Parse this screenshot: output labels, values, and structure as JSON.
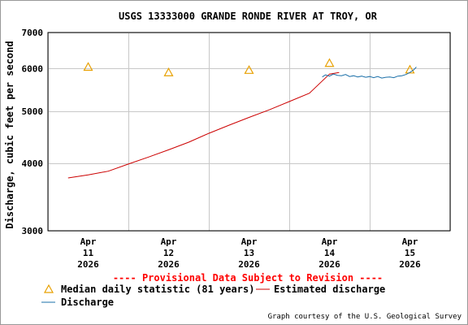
{
  "chart_data": {
    "type": "line",
    "title": "USGS 13333000 GRANDE RONDE RIVER AT TROY, OR",
    "ylabel": "Discharge, cubic feet per second",
    "xlabel": "",
    "yscale": "log",
    "ylim": [
      3000,
      7000
    ],
    "yticks": [
      "7000",
      "6000",
      "5000",
      "4000",
      "3000"
    ],
    "ytick_values": [
      7000,
      6000,
      5000,
      4000,
      3000
    ],
    "xlim": [
      0,
      5
    ],
    "xticks": [
      {
        "month": "Apr",
        "day": "11",
        "year": "2026",
        "x": 0.5
      },
      {
        "month": "Apr",
        "day": "12",
        "year": "2026",
        "x": 1.5
      },
      {
        "month": "Apr",
        "day": "13",
        "year": "2026",
        "x": 2.5
      },
      {
        "month": "Apr",
        "day": "14",
        "year": "2026",
        "x": 3.5
      },
      {
        "month": "Apr",
        "day": "15",
        "year": "2026",
        "x": 4.5
      }
    ],
    "grid": true,
    "series": [
      {
        "name": "Median daily statistic (81 years)",
        "kind": "marker",
        "color": "#e8a000",
        "x": [
          0.5,
          1.5,
          2.5,
          3.5,
          4.5
        ],
        "y": [
          6040,
          5900,
          5960,
          6140,
          5970
        ]
      },
      {
        "name": "Estimated discharge",
        "kind": "line",
        "color": "#cc0000",
        "x": [
          0.25,
          0.5,
          0.75,
          1.0,
          1.25,
          1.5,
          1.75,
          2.0,
          2.25,
          2.5,
          2.75,
          3.0,
          3.25,
          3.5,
          3.62
        ],
        "y": [
          3760,
          3810,
          3870,
          3990,
          4110,
          4240,
          4380,
          4550,
          4710,
          4870,
          5030,
          5210,
          5400,
          5860,
          5900
        ]
      },
      {
        "name": "Discharge",
        "kind": "line",
        "color": "#1a6fa8",
        "x": [
          3.41,
          3.45,
          3.5,
          3.55,
          3.6,
          3.65,
          3.7,
          3.75,
          3.8,
          3.85,
          3.9,
          3.95,
          4.0,
          4.05,
          4.1,
          4.15,
          4.2,
          4.25,
          4.3,
          4.35,
          4.4,
          4.45,
          4.5,
          4.55,
          4.58
        ],
        "y": [
          5790,
          5840,
          5810,
          5860,
          5830,
          5820,
          5850,
          5800,
          5820,
          5790,
          5810,
          5780,
          5800,
          5770,
          5800,
          5760,
          5780,
          5790,
          5770,
          5810,
          5820,
          5850,
          5900,
          5970,
          6040
        ]
      }
    ],
    "annotation": "---- Provisional Data Subject to Revision ----",
    "credit": "Graph courtesy of the U.S. Geological Survey"
  }
}
